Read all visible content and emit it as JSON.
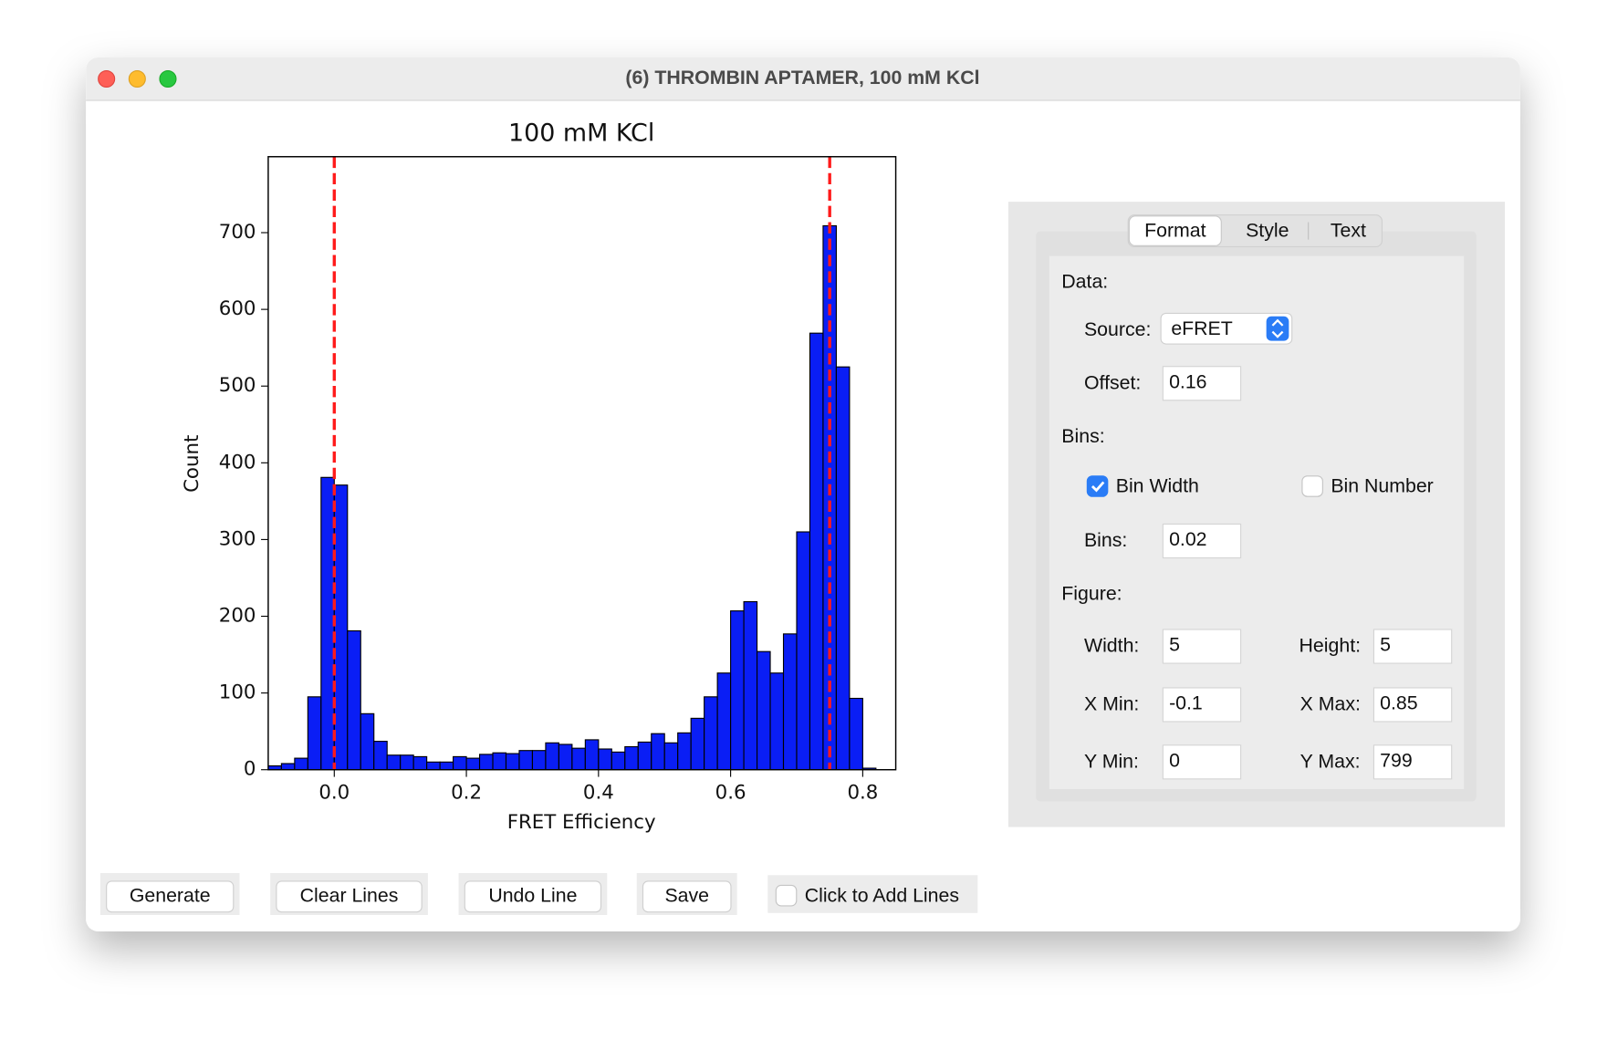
{
  "window": {
    "title": "(6) THROMBIN APTAMER, 100 mM KCl"
  },
  "chart_data": {
    "type": "histogram",
    "title": "100 mM KCl",
    "xlabel": "FRET Efficiency",
    "ylabel": "Count",
    "bins": [
      -0.1,
      -0.08,
      -0.06,
      -0.04,
      -0.02,
      0.0,
      0.02,
      0.04,
      0.06,
      0.08,
      0.1,
      0.12,
      0.14,
      0.16,
      0.18,
      0.2,
      0.22,
      0.24,
      0.26,
      0.28,
      0.3,
      0.32,
      0.34,
      0.36,
      0.38,
      0.4,
      0.42,
      0.44,
      0.46,
      0.48,
      0.5,
      0.52,
      0.54,
      0.56,
      0.58,
      0.6,
      0.62,
      0.64,
      0.66,
      0.68,
      0.7,
      0.72,
      0.74,
      0.76,
      0.78,
      0.8,
      0.82
    ],
    "values": [
      5,
      8,
      15,
      95,
      381,
      371,
      181,
      73,
      37,
      19,
      19,
      17,
      10,
      10,
      17,
      15,
      20,
      22,
      21,
      25,
      25,
      35,
      33,
      28,
      39,
      27,
      23,
      30,
      36,
      47,
      35,
      48,
      67,
      95,
      126,
      207,
      219,
      154,
      126,
      177,
      310,
      569,
      709,
      525,
      93,
      2
    ],
    "color": "#0a1ef5",
    "edgecolor": "#000000",
    "vlines": [
      0,
      0.75
    ],
    "vline_color": "#ff1a1a",
    "xlim": [
      -0.1,
      0.85
    ],
    "ylim": [
      0,
      799
    ],
    "xticks": [
      {
        "value": 0,
        "label": "0.0"
      },
      0.2,
      0.4,
      0.6,
      0.8
    ],
    "yticks": [
      0,
      100,
      200,
      300,
      400,
      500,
      600,
      700
    ]
  },
  "panel": {
    "tabs": [
      "Format",
      "Style",
      "Text"
    ],
    "data_label": "Data:",
    "source_label": "Source:",
    "source": "eFRET",
    "offset_label": "Offset:",
    "offset": 0.16,
    "bins_heading": "Bins:",
    "bin_width_label": "Bin Width",
    "bin_width_checked": true,
    "bin_number_label": "Bin Number",
    "bin_number_checked": false,
    "bins_label": "Bins:",
    "bins": 0.02,
    "figure_label": "Figure:",
    "width_label": "Width:",
    "width": 5,
    "height_label": "Height:",
    "height": 5,
    "xmin_label": "X Min:",
    "xmin": -0.1,
    "xmax_label": "X Max:",
    "xmax": 0.85,
    "ymin_label": "Y Min:",
    "ymin": 0,
    "ymax_label": "Y Max:",
    "ymax": 799
  },
  "buttons": [
    "Generate",
    "Clear Lines",
    "Undo Line",
    "Save"
  ],
  "add_lines": {
    "label": "Click to Add Lines",
    "checked": false
  }
}
